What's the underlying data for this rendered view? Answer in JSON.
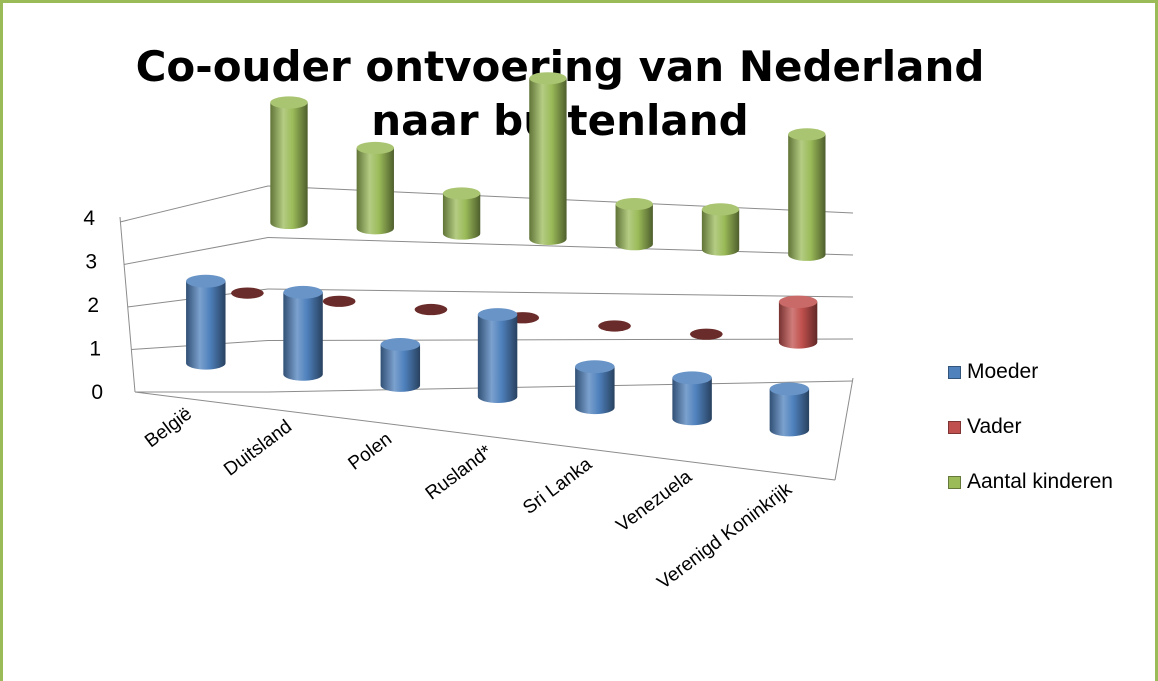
{
  "chart_data": {
    "type": "bar",
    "subtype": "3d-cylinder",
    "title": "Co-ouder ontvoering van Nederland naar buitenland",
    "categories": [
      "België",
      "Duitsland",
      "Polen",
      "Rusland*",
      "Sri Lanka",
      "Venezuela",
      "Verenigd Koninkrijk"
    ],
    "series": [
      {
        "name": "Moeder",
        "color": "#4f81bd",
        "values": [
          2,
          2,
          1,
          2,
          1,
          1,
          1
        ]
      },
      {
        "name": "Vader",
        "color": "#c0504d",
        "values": [
          0,
          0,
          0,
          0,
          0,
          0,
          1
        ]
      },
      {
        "name": "Aantal kinderen",
        "color": "#9bbb59",
        "values": [
          3,
          2,
          1,
          4,
          1,
          1,
          3
        ]
      }
    ],
    "yticks": [
      "0",
      "1",
      "2",
      "3",
      "4"
    ],
    "ylim": [
      0,
      4
    ],
    "grid": true,
    "legend": "right"
  },
  "legend_icon": "square-swatch",
  "frame_color": "#9bbb59"
}
